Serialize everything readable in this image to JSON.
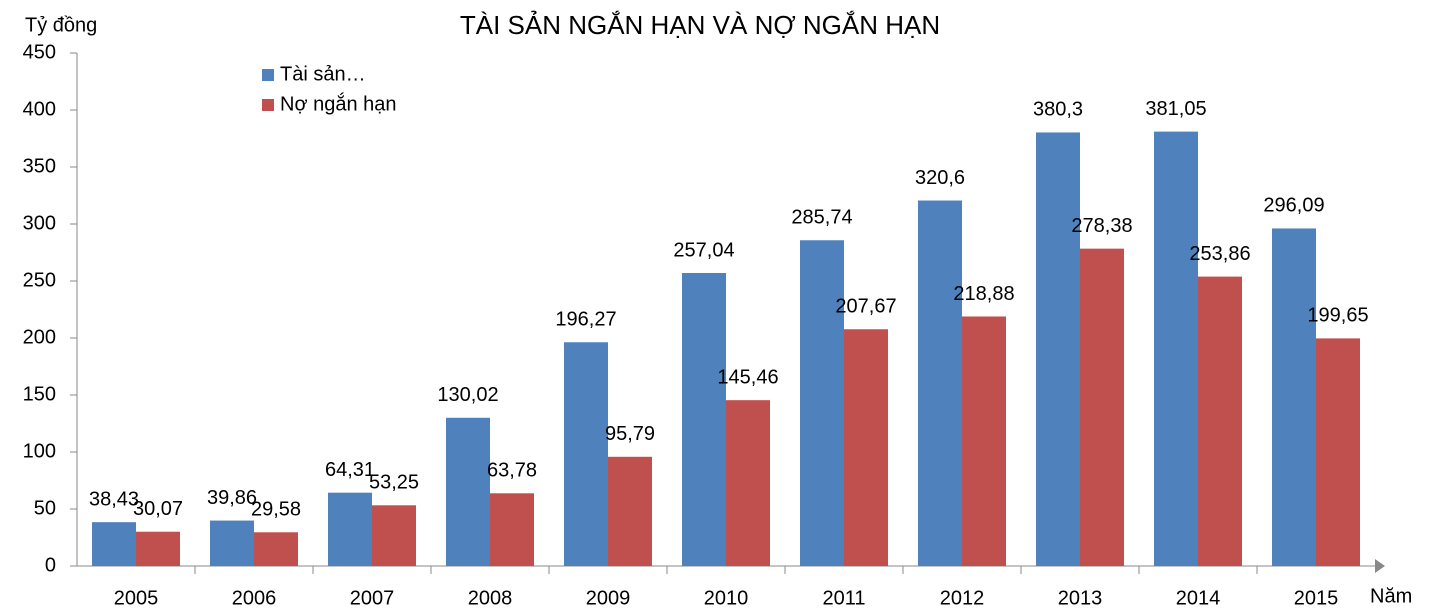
{
  "chart_data": {
    "type": "bar",
    "title": "TÀI SẢN NGẮN HẠN VÀ NỢ NGẮN HẠN",
    "y_label": "Tỷ đồng",
    "x_label": "Năm",
    "categories": [
      "2005",
      "2006",
      "2007",
      "2008",
      "2009",
      "2010",
      "2011",
      "2012",
      "2013",
      "2014",
      "2015"
    ],
    "series": [
      {
        "name": "Tài sản…",
        "color": "#4f81bd",
        "values": [
          38.43,
          39.86,
          64.31,
          130.02,
          196.27,
          257.04,
          285.74,
          320.6,
          380.3,
          381.05,
          296.09
        ],
        "value_labels": [
          "38,43",
          "39,86",
          "64,31",
          "130,02",
          "196,27",
          "257,04",
          "285,74",
          "320,6",
          "380,3",
          "381,05",
          "296,09"
        ]
      },
      {
        "name": "Nợ ngắn hạn",
        "color": "#c0504d",
        "values": [
          30.07,
          29.58,
          53.25,
          63.78,
          95.79,
          145.46,
          207.67,
          218.88,
          278.38,
          253.86,
          199.65
        ],
        "value_labels": [
          "30,07",
          "29,58",
          "53,25",
          "63,78",
          "95,79",
          "145,46",
          "207,67",
          "218,88",
          "278,38",
          "253,86",
          "199,65"
        ]
      }
    ],
    "ylim": [
      0,
      450
    ],
    "yticks": [
      0,
      50,
      100,
      150,
      200,
      250,
      300,
      350,
      400,
      450
    ],
    "legend": "top-left",
    "grid": false
  }
}
